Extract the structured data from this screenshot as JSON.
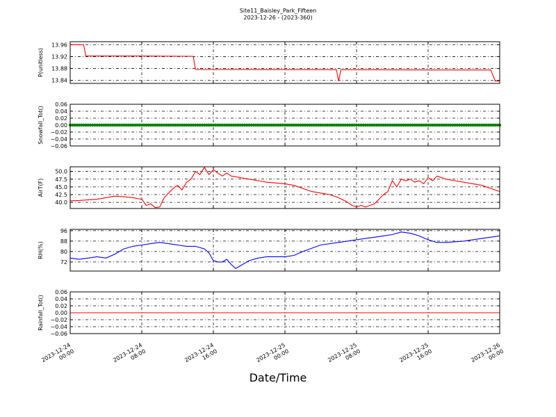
{
  "title": "Site11_Baisley_Park_Fifteen",
  "subtitle": "2023-12-26 - (2023-360)",
  "xlabel": "Date/Time",
  "x_ticks": [
    "2023-12-24\n00:00",
    "2023-12-24\n08:00",
    "2023-12-24\n16:00",
    "2023-12-25\n00:00",
    "2023-12-25\n08:00",
    "2023-12-25\n16:00",
    "2023-12-26\n00:00"
  ],
  "chart_data": [
    {
      "type": "line",
      "ylabel": "P(unitless)",
      "ylim": [
        13.83,
        13.97
      ],
      "yticks": [
        "13.96",
        "13.92",
        "13.88",
        "13.84"
      ],
      "color": "#ff0000",
      "grid": true,
      "x": [
        "2023-12-24 00:00",
        "2023-12-24 01:30",
        "2023-12-24 01:45",
        "2023-12-24 08:00",
        "2023-12-24 13:45",
        "2023-12-24 14:00",
        "2023-12-25 05:45",
        "2023-12-25 06:00",
        "2023-12-25 06:15",
        "2023-12-25 17:00",
        "2023-12-25 23:00",
        "2023-12-25 23:30",
        "2023-12-26 00:00"
      ],
      "values": [
        13.96,
        13.96,
        13.922,
        13.922,
        13.921,
        13.877,
        13.876,
        13.838,
        13.876,
        13.875,
        13.875,
        13.838,
        13.838
      ]
    },
    {
      "type": "scatter",
      "ylabel": "Snowfall_Tot()",
      "ylim": [
        -0.06,
        0.06
      ],
      "yticks": [
        "0.06",
        "0.04",
        "0.02",
        "0.00",
        "−0.02",
        "−0.04",
        "−0.06"
      ],
      "color": "#008000",
      "grid": true,
      "x": [
        "2023-12-24 00:00",
        "2023-12-26 00:00"
      ],
      "values": [
        0.0,
        0.0
      ]
    },
    {
      "type": "line",
      "ylabel": "AirT(F)",
      "ylim": [
        38.0,
        51.5
      ],
      "yticks": [
        "50.0",
        "47.5",
        "45.0",
        "42.5",
        "40.0"
      ],
      "color": "#ff0000",
      "grid": true,
      "x": [
        "2023-12-24 00:00",
        "2023-12-24 01:00",
        "2023-12-24 02:00",
        "2023-12-24 03:00",
        "2023-12-24 04:00",
        "2023-12-24 05:00",
        "2023-12-24 06:00",
        "2023-12-24 07:00",
        "2023-12-24 08:00",
        "2023-12-24 08:30",
        "2023-12-24 09:00",
        "2023-12-24 09:30",
        "2023-12-24 10:00",
        "2023-12-24 10:30",
        "2023-12-24 11:00",
        "2023-12-24 11:30",
        "2023-12-24 12:00",
        "2023-12-24 12:30",
        "2023-12-24 13:00",
        "2023-12-24 13:30",
        "2023-12-24 14:00",
        "2023-12-24 14:30",
        "2023-12-24 15:00",
        "2023-12-24 15:30",
        "2023-12-24 16:00",
        "2023-12-24 16:30",
        "2023-12-24 17:00",
        "2023-12-24 17:30",
        "2023-12-24 18:00",
        "2023-12-24 19:00",
        "2023-12-24 20:00",
        "2023-12-24 21:00",
        "2023-12-24 22:00",
        "2023-12-25 00:00",
        "2023-12-25 01:00",
        "2023-12-25 02:00",
        "2023-12-25 03:00",
        "2023-12-25 04:00",
        "2023-12-25 05:00",
        "2023-12-25 06:00",
        "2023-12-25 07:00",
        "2023-12-25 07:30",
        "2023-12-25 08:00",
        "2023-12-25 08:30",
        "2023-12-25 09:00",
        "2023-12-25 09:30",
        "2023-12-25 10:00",
        "2023-12-25 10:30",
        "2023-12-25 11:00",
        "2023-12-25 11:30",
        "2023-12-25 12:00",
        "2023-12-25 12:30",
        "2023-12-25 13:00",
        "2023-12-25 13:30",
        "2023-12-25 14:00",
        "2023-12-25 14:30",
        "2023-12-25 15:00",
        "2023-12-25 15:30",
        "2023-12-25 16:00",
        "2023-12-25 16:30",
        "2023-12-25 17:00",
        "2023-12-25 17:30",
        "2023-12-25 18:00",
        "2023-12-25 19:00",
        "2023-12-25 20:00",
        "2023-12-25 21:00",
        "2023-12-25 22:00",
        "2023-12-25 23:00",
        "2023-12-26 00:00"
      ],
      "values": [
        40.5,
        40.6,
        40.8,
        41.0,
        41.5,
        42.0,
        41.8,
        41.5,
        41.0,
        39.0,
        39.5,
        38.3,
        38.5,
        41.5,
        43.0,
        44.5,
        45.5,
        44.0,
        46.5,
        47.5,
        50.0,
        49.0,
        51.3,
        49.0,
        50.5,
        49.5,
        48.5,
        49.5,
        48.5,
        48.0,
        47.5,
        47.0,
        46.5,
        46.0,
        45.5,
        44.5,
        43.5,
        43.0,
        42.5,
        41.5,
        40.0,
        39.0,
        38.5,
        39.0,
        38.5,
        39.0,
        39.5,
        41.0,
        42.5,
        43.5,
        47.0,
        45.0,
        47.5,
        47.0,
        47.5,
        46.5,
        47.0,
        46.0,
        48.0,
        47.0,
        48.5,
        48.0,
        47.5,
        47.0,
        46.5,
        46.0,
        45.5,
        44.5,
        43.5
      ]
    },
    {
      "type": "line",
      "ylabel": "RH(%)",
      "ylim": [
        65,
        97
      ],
      "yticks": [
        "96",
        "88",
        "80",
        "72"
      ],
      "color": "#0000ff",
      "grid": true,
      "x": [
        "2023-12-24 00:00",
        "2023-12-24 01:00",
        "2023-12-24 02:00",
        "2023-12-24 03:00",
        "2023-12-24 04:00",
        "2023-12-24 05:00",
        "2023-12-24 06:00",
        "2023-12-24 07:00",
        "2023-12-24 08:00",
        "2023-12-24 09:00",
        "2023-12-24 10:00",
        "2023-12-24 11:00",
        "2023-12-24 12:00",
        "2023-12-24 13:00",
        "2023-12-24 14:00",
        "2023-12-24 15:00",
        "2023-12-24 15:30",
        "2023-12-24 16:00",
        "2023-12-24 16:30",
        "2023-12-24 17:00",
        "2023-12-24 17:30",
        "2023-12-24 18:00",
        "2023-12-24 18:30",
        "2023-12-24 19:00",
        "2023-12-24 20:00",
        "2023-12-24 21:00",
        "2023-12-24 22:00",
        "2023-12-25 00:00",
        "2023-12-25 01:00",
        "2023-12-25 02:00",
        "2023-12-25 04:00",
        "2023-12-25 06:00",
        "2023-12-25 08:00",
        "2023-12-25 09:00",
        "2023-12-25 10:00",
        "2023-12-25 11:00",
        "2023-12-25 12:00",
        "2023-12-25 13:00",
        "2023-12-25 14:00",
        "2023-12-25 15:00",
        "2023-12-25 16:00",
        "2023-12-25 17:00",
        "2023-12-25 18:00",
        "2023-12-25 20:00",
        "2023-12-25 22:00",
        "2023-12-26 00:00"
      ],
      "values": [
        75,
        74,
        75,
        76,
        75,
        78,
        82,
        84,
        85,
        86,
        87,
        86,
        85,
        84,
        84,
        82,
        79,
        73,
        72,
        72,
        74,
        70,
        67,
        69,
        73,
        75,
        76,
        76,
        77,
        80,
        85,
        87,
        89,
        90,
        91,
        92,
        93,
        95,
        94,
        92,
        89,
        87,
        87,
        88,
        90,
        92
      ]
    },
    {
      "type": "line",
      "ylabel": "Rainfall_Tot()",
      "ylim": [
        -0.06,
        0.06
      ],
      "yticks": [
        "0.06",
        "0.04",
        "0.02",
        "0.00",
        "−0.02",
        "−0.04",
        "−0.06"
      ],
      "color": "#ff0000",
      "grid": true,
      "x": [
        "2023-12-24 00:00",
        "2023-12-26 00:00"
      ],
      "values": [
        0.0,
        0.0
      ]
    }
  ]
}
